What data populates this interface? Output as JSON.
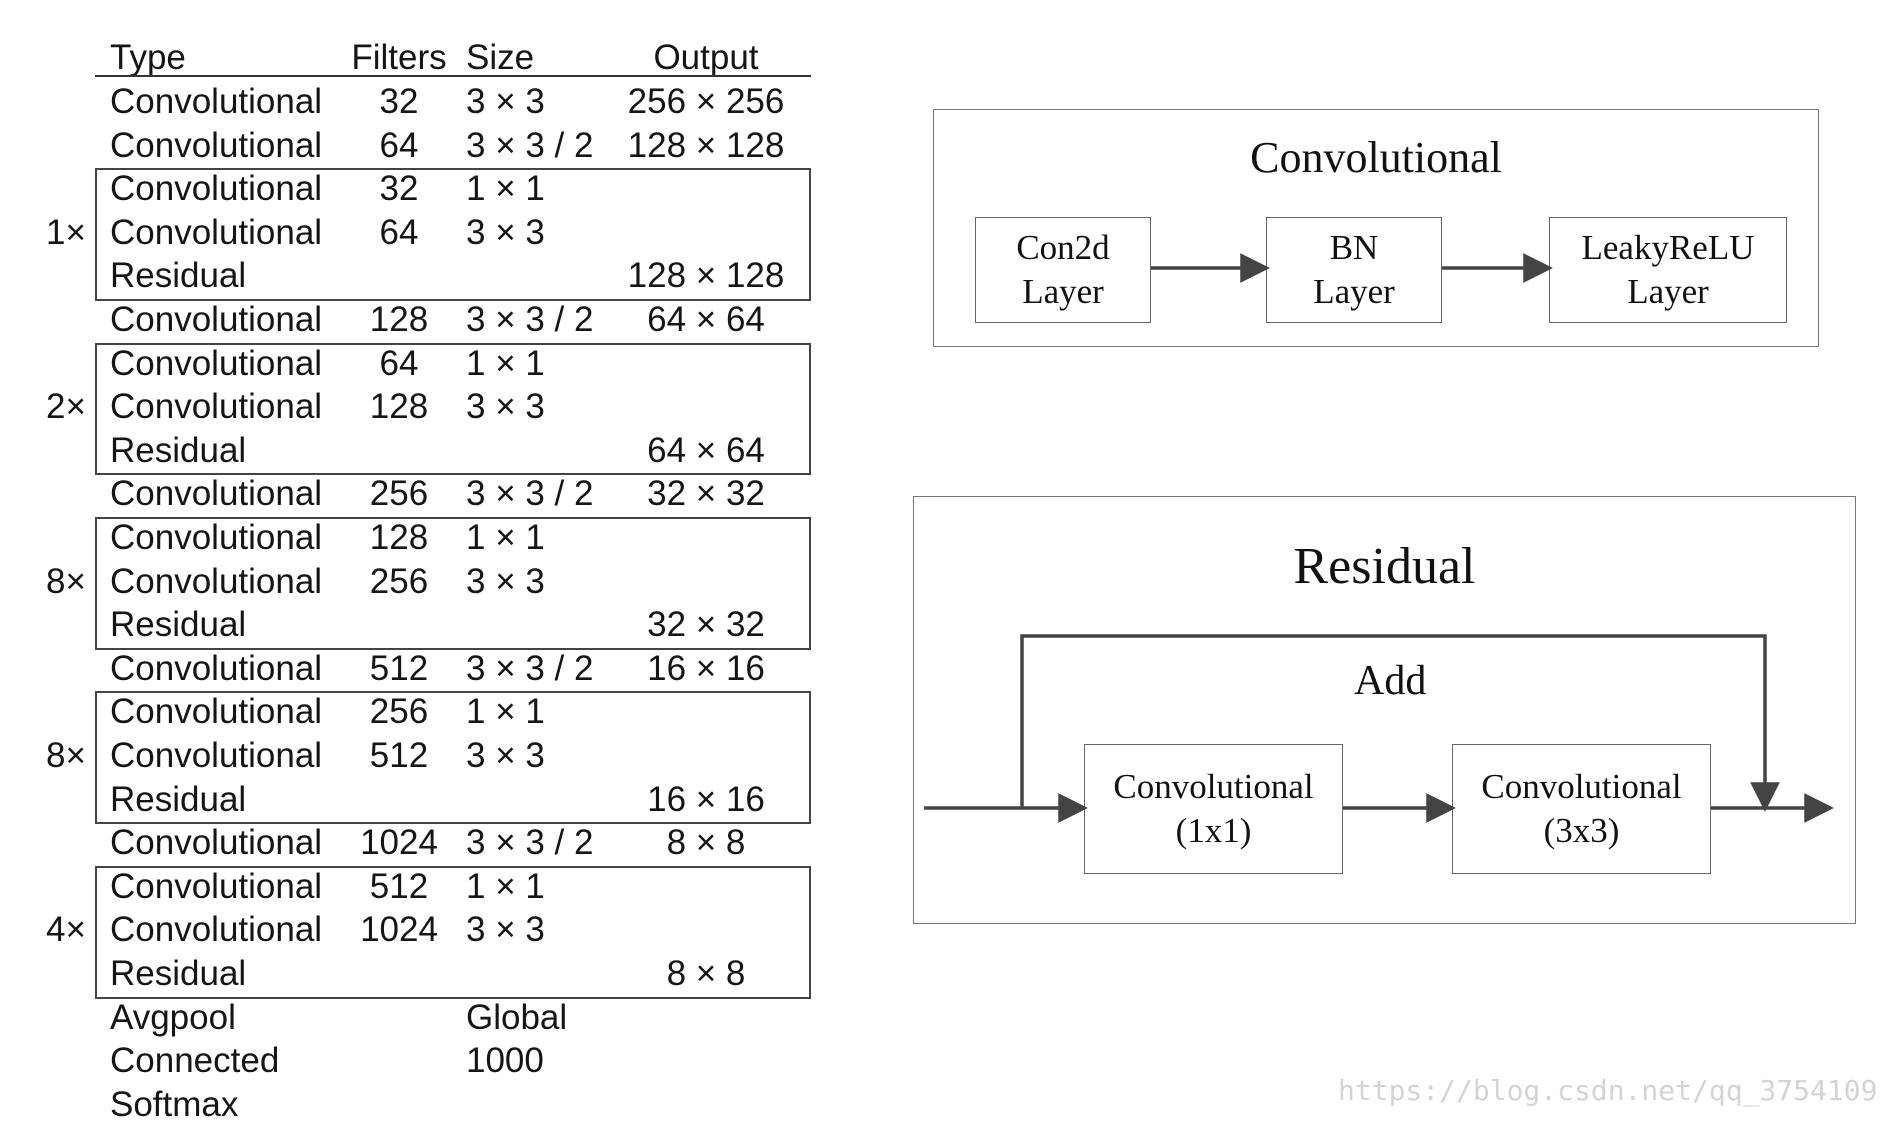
{
  "table": {
    "headers": {
      "type": "Type",
      "filters": "Filters",
      "size": "Size",
      "output": "Output"
    },
    "rows": [
      {
        "type": "Convolutional",
        "filters": "32",
        "size": "3 × 3",
        "output": "256 × 256"
      },
      {
        "type": "Convolutional",
        "filters": "64",
        "size": "3 × 3 / 2",
        "output": "128 × 128"
      },
      {
        "type": "Convolutional",
        "filters": "32",
        "size": "1 × 1",
        "output": ""
      },
      {
        "type": "Convolutional",
        "filters": "64",
        "size": "3 × 3",
        "output": ""
      },
      {
        "type": "Residual",
        "filters": "",
        "size": "",
        "output": "128 × 128"
      },
      {
        "type": "Convolutional",
        "filters": "128",
        "size": "3 × 3 / 2",
        "output": "64 × 64"
      },
      {
        "type": "Convolutional",
        "filters": "64",
        "size": "1 × 1",
        "output": ""
      },
      {
        "type": "Convolutional",
        "filters": "128",
        "size": "3 × 3",
        "output": ""
      },
      {
        "type": "Residual",
        "filters": "",
        "size": "",
        "output": "64 × 64"
      },
      {
        "type": "Convolutional",
        "filters": "256",
        "size": "3 × 3 / 2",
        "output": "32 × 32"
      },
      {
        "type": "Convolutional",
        "filters": "128",
        "size": "1 × 1",
        "output": ""
      },
      {
        "type": "Convolutional",
        "filters": "256",
        "size": "3 × 3",
        "output": ""
      },
      {
        "type": "Residual",
        "filters": "",
        "size": "",
        "output": "32 × 32"
      },
      {
        "type": "Convolutional",
        "filters": "512",
        "size": "3 × 3 / 2",
        "output": "16 × 16"
      },
      {
        "type": "Convolutional",
        "filters": "256",
        "size": "1 × 1",
        "output": ""
      },
      {
        "type": "Convolutional",
        "filters": "512",
        "size": "3 × 3",
        "output": ""
      },
      {
        "type": "Residual",
        "filters": "",
        "size": "",
        "output": "16 × 16"
      },
      {
        "type": "Convolutional",
        "filters": "1024",
        "size": "3 × 3 / 2",
        "output": "8 × 8"
      },
      {
        "type": "Convolutional",
        "filters": "512",
        "size": "1 × 1",
        "output": ""
      },
      {
        "type": "Convolutional",
        "filters": "1024",
        "size": "3 × 3",
        "output": ""
      },
      {
        "type": "Residual",
        "filters": "",
        "size": "",
        "output": "8 × 8"
      },
      {
        "type": "Avgpool",
        "filters": "",
        "size": "Global",
        "output": ""
      },
      {
        "type": "Connected",
        "filters": "",
        "size": "1000",
        "output": ""
      },
      {
        "type": "Softmax",
        "filters": "",
        "size": "",
        "output": ""
      }
    ],
    "groups": [
      {
        "multiplier": "1×",
        "first_row": 2,
        "last_row": 4
      },
      {
        "multiplier": "2×",
        "first_row": 6,
        "last_row": 8
      },
      {
        "multiplier": "8×",
        "first_row": 10,
        "last_row": 12
      },
      {
        "multiplier": "8×",
        "first_row": 14,
        "last_row": 16
      },
      {
        "multiplier": "4×",
        "first_row": 18,
        "last_row": 20
      }
    ]
  },
  "conv_block": {
    "title": "Convolutional",
    "nodes": [
      {
        "line1": "Con2d",
        "line2": "Layer"
      },
      {
        "line1": "BN",
        "line2": "Layer"
      },
      {
        "line1": "LeakyReLU",
        "line2": "Layer"
      }
    ]
  },
  "residual_block": {
    "title": "Residual",
    "add_label": "Add",
    "nodes": [
      {
        "line1": "Convolutional",
        "line2": "(1x1)"
      },
      {
        "line1": "Convolutional",
        "line2": "(3x3)"
      }
    ]
  },
  "watermark": "https://blog.csdn.net/qq_3754109"
}
